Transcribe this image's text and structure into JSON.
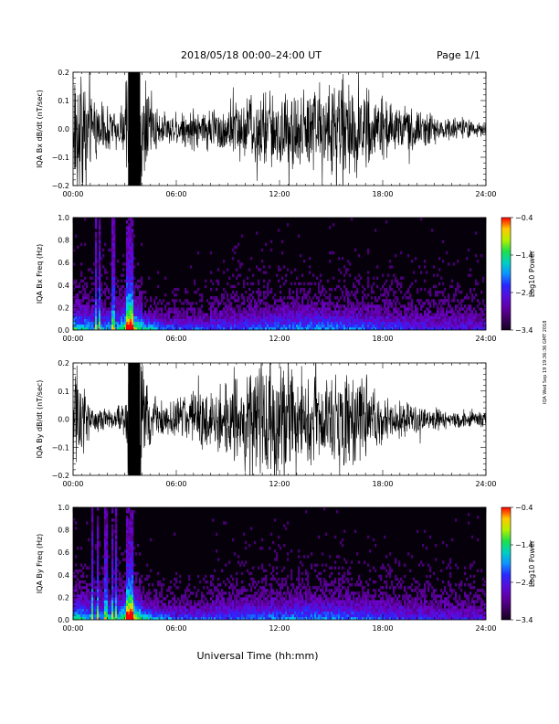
{
  "header": {
    "title": "2018/05/18  00:00–24:00 UT",
    "page": "Page 1/1"
  },
  "footer": {
    "xlabel": "Universal Time (hh:mm)",
    "stamp": "IQA Wed Sep 19 19:36:36 GMT 2018"
  },
  "chart_data": [
    {
      "type": "line",
      "ylabel": "IQA Bx dB/dt (nT/sec)",
      "xlim": [
        0,
        24
      ],
      "ylim": [
        -0.2,
        0.2
      ],
      "xticks": [
        "00:00",
        "06:00",
        "12:00",
        "18:00",
        "24:00"
      ],
      "yticks": [
        "−0.2",
        "−0.1",
        "0.0",
        "0.1",
        "0.2"
      ],
      "series": [
        {
          "x": [
            0.0,
            0.5,
            1.0,
            1.5,
            2.0,
            2.5,
            3.0,
            3.2,
            3.5,
            3.8,
            4.2,
            4.6,
            5.0,
            5.5,
            6.0,
            7.0,
            8.0,
            9.0,
            10.0,
            11.0,
            12.0,
            13.0,
            14.0,
            15.0,
            16.0,
            17.0,
            18.0,
            19.0,
            20.0,
            21.0,
            22.0,
            23.0,
            24.0
          ],
          "amplitude": [
            0.2,
            0.2,
            0.12,
            0.1,
            0.08,
            0.07,
            0.08,
            0.22,
            0.22,
            0.22,
            0.2,
            0.1,
            0.06,
            0.05,
            0.06,
            0.07,
            0.07,
            0.09,
            0.11,
            0.13,
            0.15,
            0.13,
            0.16,
            0.17,
            0.18,
            0.14,
            0.1,
            0.08,
            0.07,
            0.05,
            0.04,
            0.03,
            0.03
          ]
        }
      ]
    },
    {
      "type": "heatmap",
      "ylabel": "IQA Bx Freq (Hz)",
      "xlim": [
        0,
        24
      ],
      "ylim": [
        0.0,
        1.0
      ],
      "xticks": [
        "00:00",
        "06:00",
        "12:00",
        "18:00",
        "24:00"
      ],
      "yticks": [
        "0.0",
        "0.2",
        "0.4",
        "0.6",
        "0.8",
        "1.0"
      ],
      "colorbar": {
        "label": "Log10 Power",
        "range": [
          -3.4,
          -0.4
        ],
        "ticks": [
          "−0.4",
          "−1.4",
          "−2.4",
          "−3.4"
        ]
      }
    },
    {
      "type": "line",
      "ylabel": "IQA By dB/dt (nT/sec)",
      "xlim": [
        0,
        24
      ],
      "ylim": [
        -0.2,
        0.2
      ],
      "xticks": [
        "00:00",
        "06:00",
        "12:00",
        "18:00",
        "24:00"
      ],
      "yticks": [
        "−0.2",
        "−0.1",
        "0.0",
        "0.1",
        "0.2"
      ],
      "series": [
        {
          "x": [
            0.0,
            0.5,
            1.0,
            1.5,
            2.0,
            2.5,
            3.0,
            3.2,
            3.5,
            3.8,
            4.2,
            4.6,
            5.0,
            5.5,
            6.0,
            7.0,
            8.0,
            9.0,
            10.0,
            11.0,
            12.0,
            13.0,
            14.0,
            15.0,
            16.0,
            17.0,
            18.0,
            19.0,
            20.0,
            21.0,
            22.0,
            23.0,
            24.0
          ],
          "amplitude": [
            0.2,
            0.18,
            0.05,
            0.04,
            0.04,
            0.04,
            0.05,
            0.22,
            0.22,
            0.22,
            0.2,
            0.09,
            0.07,
            0.06,
            0.07,
            0.1,
            0.11,
            0.12,
            0.18,
            0.2,
            0.22,
            0.18,
            0.16,
            0.15,
            0.15,
            0.13,
            0.09,
            0.06,
            0.05,
            0.04,
            0.03,
            0.03,
            0.03
          ]
        }
      ]
    },
    {
      "type": "heatmap",
      "ylabel": "IQA By Freq (Hz)",
      "xlim": [
        0,
        24
      ],
      "ylim": [
        0.0,
        1.0
      ],
      "xticks": [
        "00:00",
        "06:00",
        "12:00",
        "18:00",
        "24:00"
      ],
      "yticks": [
        "0.0",
        "0.2",
        "0.4",
        "0.6",
        "0.8",
        "1.0"
      ],
      "colorbar": {
        "label": "Log10 Power",
        "range": [
          -3.4,
          -0.4
        ],
        "ticks": [
          "−0.4",
          "−1.4",
          "−2.4",
          "−3.4"
        ]
      }
    }
  ]
}
